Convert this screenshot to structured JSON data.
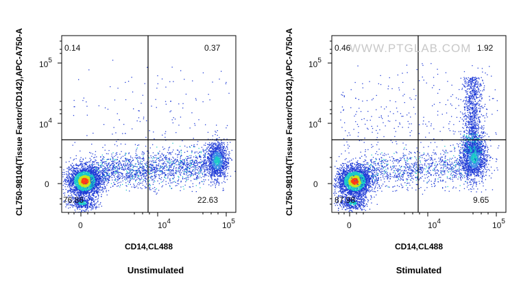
{
  "watermark": "WWW.PTGLAB.COM",
  "colors": {
    "low": "#1f3bd6",
    "mid": "#19c8c8",
    "midhigh": "#c8e61e",
    "high": "#ff3c14",
    "gate": "#000000"
  },
  "chart_data": [
    {
      "type": "scatter",
      "caption": "Unstimulated",
      "xlabel": "CD14,CL488",
      "ylabel": "CL750-98104(Tissue Factor/CD142),APC-A750-A",
      "x_scale": "biexponential",
      "y_scale": "biexponential",
      "x_ticks": [
        {
          "major": "0",
          "sup": ""
        },
        {
          "major": "10",
          "sup": "4"
        },
        {
          "major": "10",
          "sup": "5"
        }
      ],
      "y_ticks": [
        {
          "major": "0",
          "sup": ""
        },
        {
          "major": "10",
          "sup": "4"
        },
        {
          "major": "10",
          "sup": "5"
        }
      ],
      "gate_x": 5000,
      "gate_y": 3000,
      "quadrants": {
        "upper_left": "0.14",
        "upper_right": "0.37",
        "lower_left": "76.86",
        "lower_right": "22.63"
      },
      "populations": [
        {
          "name": "",
          "x_center": 300,
          "y_center": 0,
          "density": "high"
        },
        {
          "name": "",
          "x_center": 65000,
          "y_center": 900,
          "density": "medium"
        }
      ]
    },
    {
      "type": "scatter",
      "caption": "Stimulated",
      "xlabel": "CD14,CL488",
      "ylabel": "CL750-98104(Tissue Factor/CD142),APC-A750-A",
      "x_scale": "biexponential",
      "y_scale": "biexponential",
      "x_ticks": [
        {
          "major": "0",
          "sup": ""
        },
        {
          "major": "10",
          "sup": "4"
        },
        {
          "major": "10",
          "sup": "5"
        }
      ],
      "y_ticks": [
        {
          "major": "0",
          "sup": ""
        },
        {
          "major": "10",
          "sup": "4"
        },
        {
          "major": "10",
          "sup": "5"
        }
      ],
      "gate_x": 5000,
      "gate_y": 3000,
      "quadrants": {
        "upper_left": "0.46",
        "upper_right": "1.92",
        "lower_left": "87.98",
        "lower_right": "9.65"
      },
      "populations": [
        {
          "name": "",
          "x_center": 300,
          "y_center": 0,
          "density": "high"
        },
        {
          "name": "",
          "x_center": 60000,
          "y_center": 1500,
          "density": "medium"
        }
      ]
    }
  ]
}
